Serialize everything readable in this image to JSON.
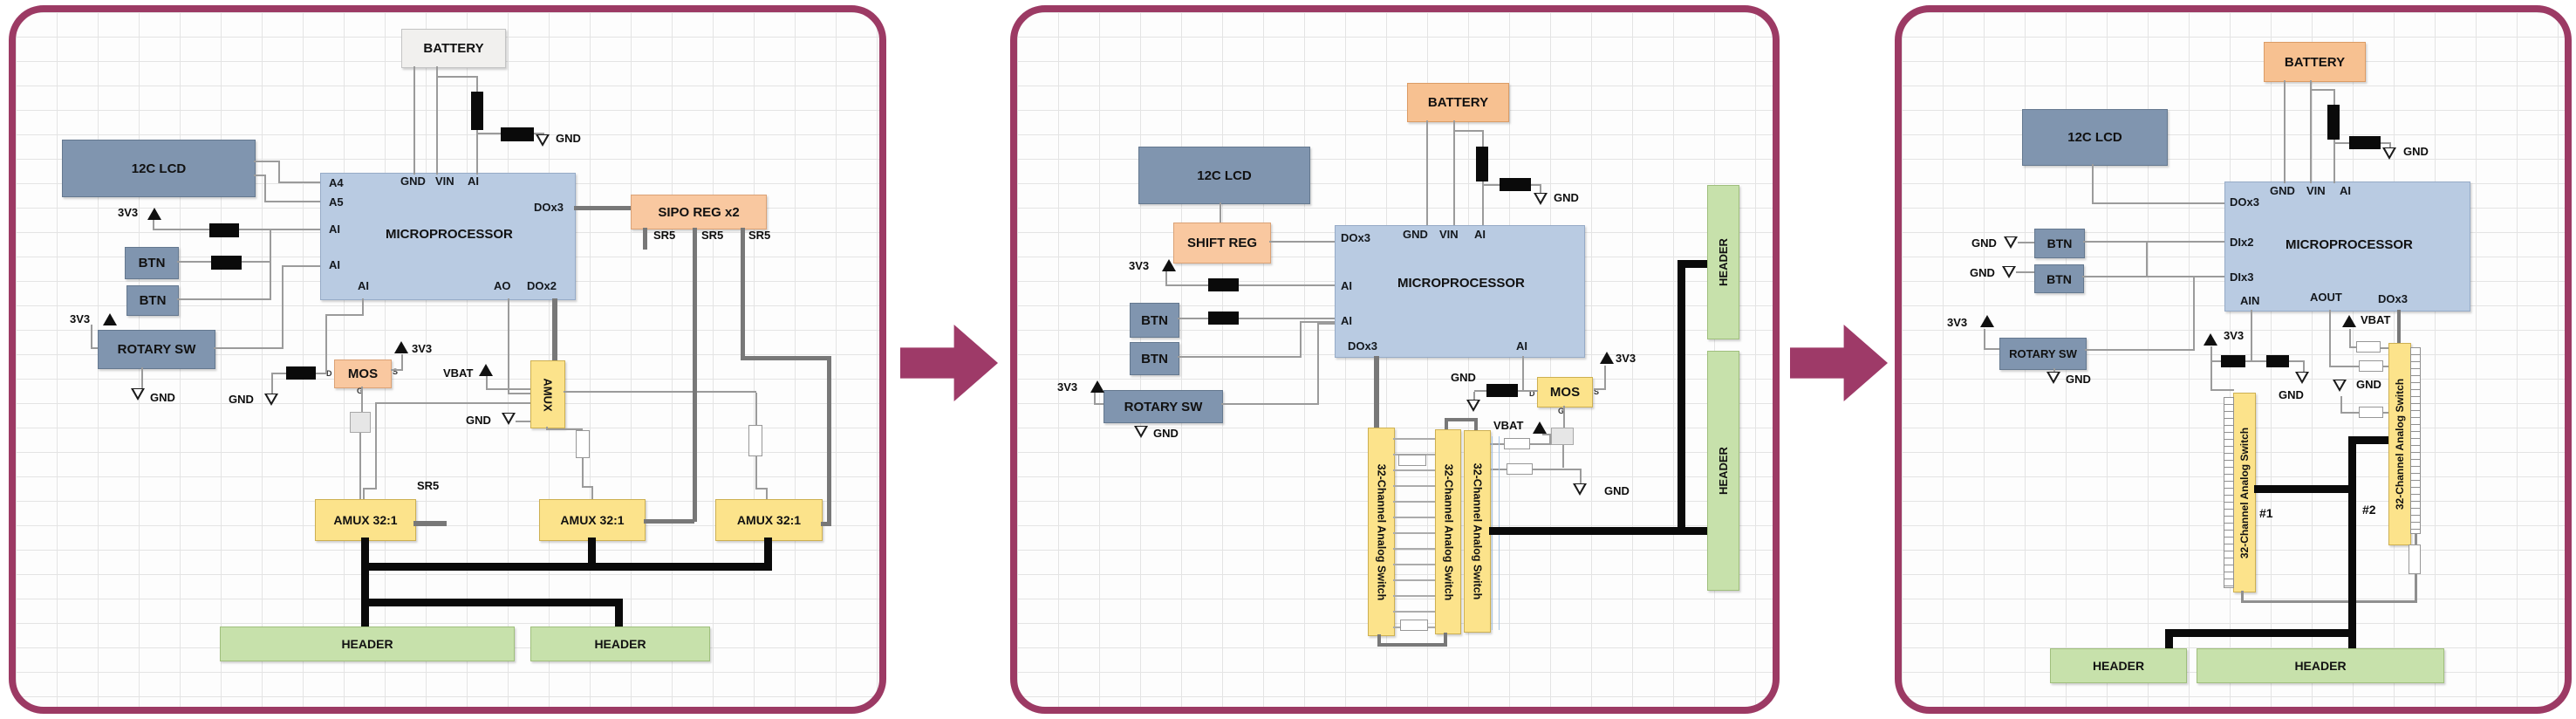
{
  "sym": {
    "v33": "3V3",
    "gnd": "GND",
    "vbat": "VBAT"
  },
  "p1": {
    "battery": "BATTERY",
    "lcd": "12C LCD",
    "micro": "MICROPROCESSOR",
    "pins": {
      "gnd": "GND",
      "vin": "VIN",
      "ai": "AI",
      "a4": "A4",
      "a5": "A5",
      "ao": "AO",
      "dox2": "DOx2",
      "dox3": "DOx3"
    },
    "sipo": "SIPO REG x2",
    "sr5": "SR5",
    "btn": "BTN",
    "rotary": "ROTARY SW",
    "mos": "MOS",
    "mos_pins": {
      "d": "D",
      "s": "S",
      "g": "G"
    },
    "amux": "AMUX",
    "amux32": "AMUX 32:1",
    "header": "HEADER"
  },
  "p2": {
    "battery": "BATTERY",
    "lcd": "12C LCD",
    "shift": "SHIFT REG",
    "micro": "MICROPROCESSOR",
    "pins": {
      "gnd": "GND",
      "vin": "VIN",
      "ai": "AI",
      "dox3": "DOx3"
    },
    "btn": "BTN",
    "rotary": "ROTARY SW",
    "mos": "MOS",
    "mos_pins": {
      "d": "D",
      "s": "S",
      "g": "G"
    },
    "sw32": "32-Channel Analog Switch",
    "header": "HEADER"
  },
  "p3": {
    "battery": "BATTERY",
    "lcd": "12C LCD",
    "micro": "MICROPROCESSOR",
    "pins": {
      "gnd": "GND",
      "vin": "VIN",
      "ai": "AI",
      "dox3": "DOx3",
      "dix2": "DIx2",
      "dix3": "DIx3",
      "ain": "AIN",
      "aout": "AOUT"
    },
    "btn": "BTN",
    "rotary": "ROTARY SW",
    "sw32": "32-Channel Analog Switch",
    "num1": "#1",
    "num2": "#2",
    "header": "HEADER"
  }
}
